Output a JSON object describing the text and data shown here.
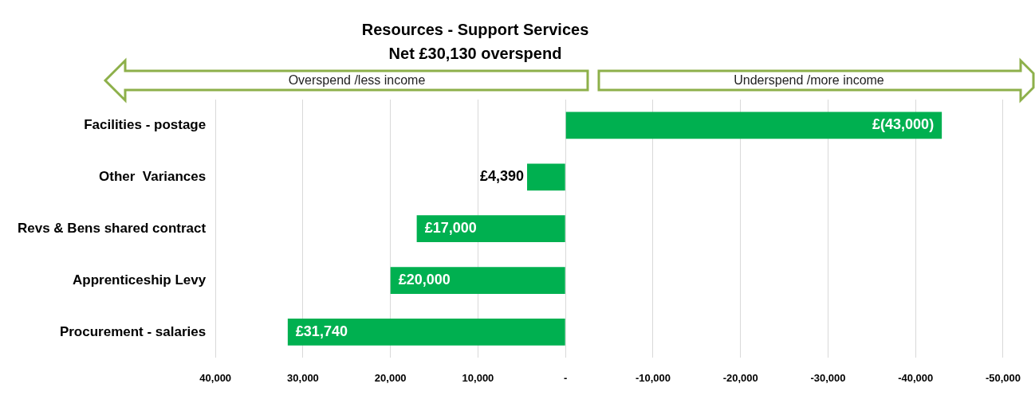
{
  "chart_data": {
    "type": "bar",
    "orientation": "horizontal",
    "title": "Resources - Support Services",
    "subtitle": "Net £30,130 overspend",
    "categories": [
      "Facilities - postage",
      "Other  Variances",
      "Revs & Bens shared contract",
      "Apprenticeship Levy",
      "Procurement - salaries"
    ],
    "values": [
      -43000,
      4390,
      17000,
      20000,
      31740
    ],
    "color": "#00b050",
    "value_labels": [
      "£(43,000)",
      "£4,390",
      "£17,000",
      "£20,000",
      "£31,740"
    ],
    "xlim": [
      40000,
      -50000
    ],
    "xticks": [
      {
        "value": 40000,
        "label": "40,000"
      },
      {
        "value": 30000,
        "label": "30,000"
      },
      {
        "value": 20000,
        "label": "20,000"
      },
      {
        "value": 10000,
        "label": "10,000"
      },
      {
        "value": 0,
        "label": "-"
      },
      {
        "value": -10000,
        "label": "-10,000"
      },
      {
        "value": -20000,
        "label": "-20,000"
      },
      {
        "value": -30000,
        "label": "-30,000"
      },
      {
        "value": -40000,
        "label": "-40,000"
      },
      {
        "value": -50000,
        "label": "-50,000"
      }
    ],
    "grid": "x",
    "legend": false,
    "annotations": [
      "Overspend /less income",
      "Underspend /more income"
    ]
  }
}
